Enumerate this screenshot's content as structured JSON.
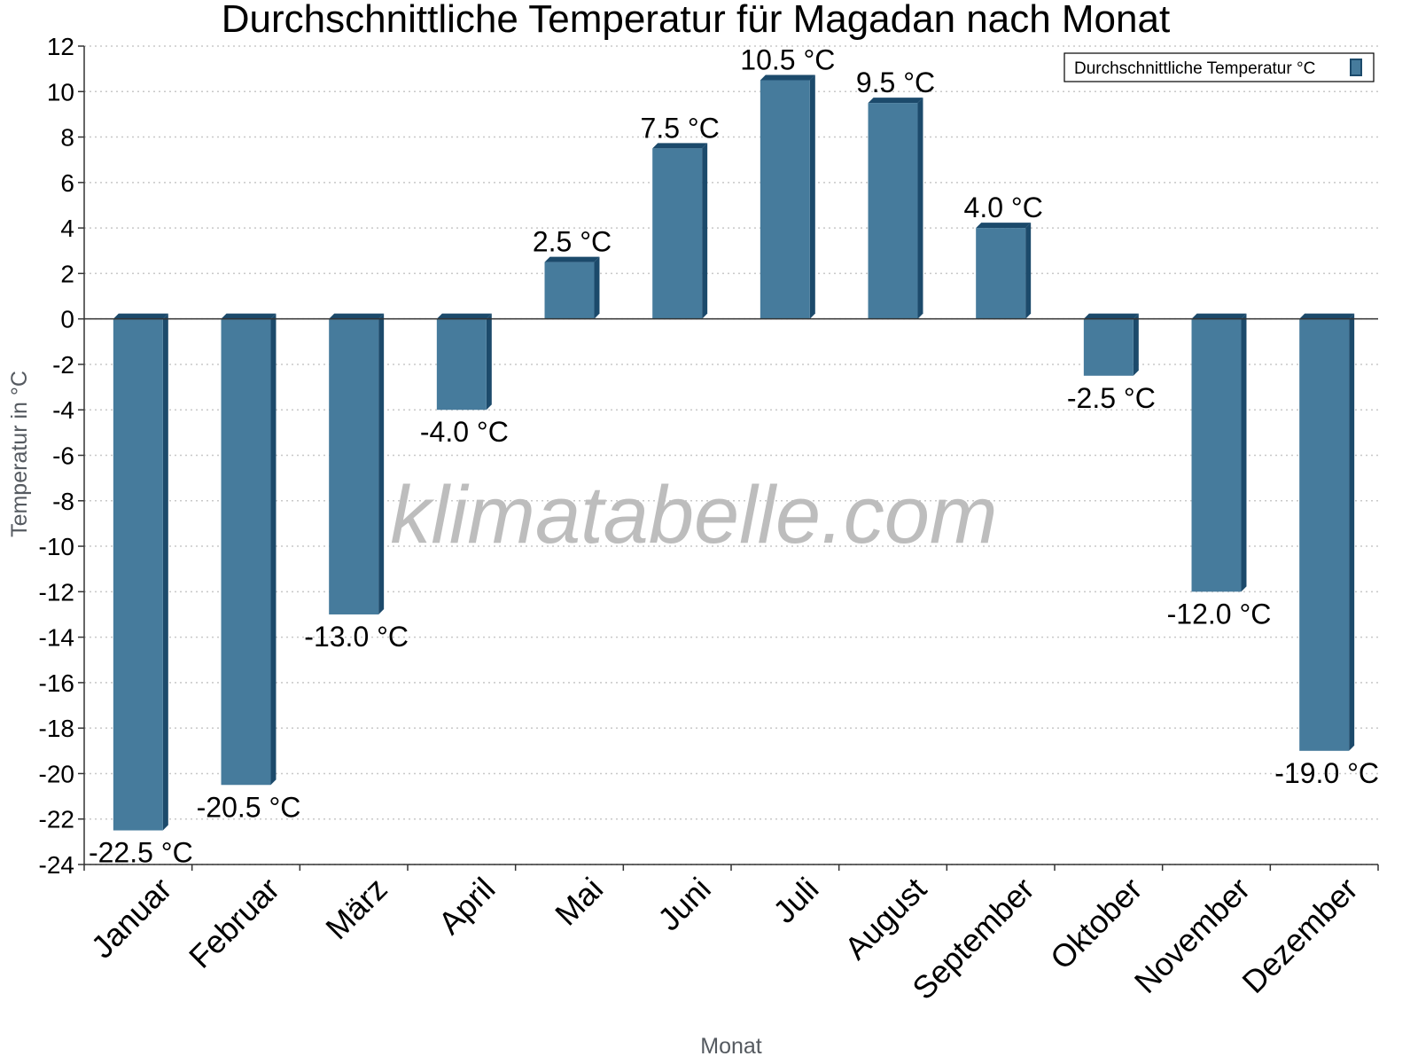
{
  "chart_data": {
    "type": "bar",
    "title": "Durchschnittliche Temperatur für Magadan nach Monat",
    "xlabel": "Monat",
    "ylabel": "Temperatur in °C",
    "categories": [
      "Januar",
      "Februar",
      "März",
      "April",
      "Mai",
      "Juni",
      "Juli",
      "August",
      "September",
      "Oktober",
      "November",
      "Dezember"
    ],
    "series": [
      {
        "name": "Durchschnittliche Temperatur °C",
        "values": [
          -22.5,
          -20.5,
          -13.0,
          -4.0,
          2.5,
          7.5,
          10.5,
          9.5,
          4.0,
          -2.5,
          -12.0,
          -19.0
        ],
        "labels": [
          "-22.5 °C",
          "-20.5 °C",
          "-13.0 °C",
          "-4.0 °C",
          "2.5 °C",
          "7.5 °C",
          "10.5 °C",
          "9.5 °C",
          "4.0 °C",
          "-2.5 °C",
          "-12.0 °C",
          "-19.0 °C"
        ]
      }
    ],
    "ylim": [
      -24,
      12
    ],
    "yticks": [
      12,
      10,
      8,
      6,
      4,
      2,
      0,
      -2,
      -4,
      -6,
      -8,
      -10,
      -12,
      -14,
      -16,
      -18,
      -20,
      -22,
      -24
    ],
    "grid": true,
    "legend_position": "top-right",
    "colors": {
      "bar_face": "#467b9c",
      "bar_edge": "#1c4a6b",
      "grid": "#c8c8c8",
      "watermark": "#bdbdbd"
    }
  },
  "watermark": "klimatabelle.com"
}
